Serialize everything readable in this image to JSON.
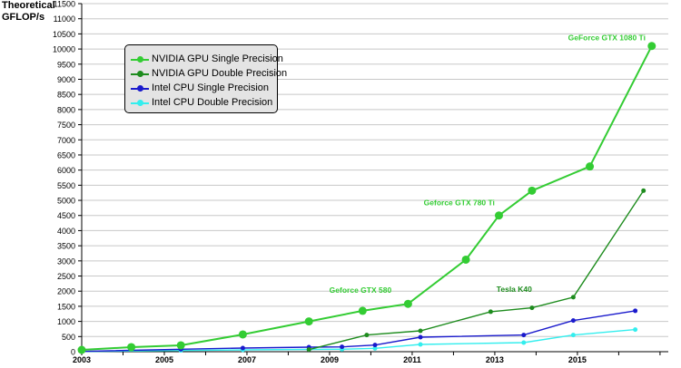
{
  "chart_data": {
    "type": "line",
    "ylabel": "Theoretical\nGFLOP/s",
    "xlim": [
      2003,
      2017.2
    ],
    "ylim": [
      0,
      11500
    ],
    "x_ticks": [
      2003,
      2005,
      2007,
      2009,
      2011,
      2013,
      2015
    ],
    "y_ticks": [
      0,
      500,
      1000,
      1500,
      2000,
      2500,
      3000,
      3500,
      4000,
      4500,
      5000,
      5500,
      6000,
      6500,
      7000,
      7500,
      8000,
      8500,
      9000,
      9500,
      10000,
      10500,
      11000,
      11500
    ],
    "grid": "horizontal",
    "legend_position": "top-left",
    "series": [
      {
        "name": "NVIDIA GPU Single Precision",
        "color": "#33cc33",
        "marker_size": 4.5,
        "points": [
          [
            2003.0,
            60
          ],
          [
            2004.2,
            150
          ],
          [
            2005.4,
            210
          ],
          [
            2006.9,
            570
          ],
          [
            2008.5,
            1000
          ],
          [
            2009.8,
            1350
          ],
          [
            2010.9,
            1580
          ],
          [
            2012.3,
            3040
          ],
          [
            2013.1,
            4500
          ],
          [
            2013.9,
            5320
          ],
          [
            2015.3,
            6120
          ],
          [
            2016.8,
            10100
          ]
        ]
      },
      {
        "name": "NVIDIA GPU Double Precision",
        "color": "#1e8c1e",
        "marker_size": 2.5,
        "points": [
          [
            2008.5,
            70
          ],
          [
            2009.9,
            550
          ],
          [
            2011.2,
            690
          ],
          [
            2012.9,
            1320
          ],
          [
            2013.9,
            1450
          ],
          [
            2014.9,
            1800
          ],
          [
            2016.6,
            5320
          ]
        ]
      },
      {
        "name": "Intel CPU Single Precision",
        "color": "#1a1acc",
        "marker_size": 2.5,
        "points": [
          [
            2003.0,
            10
          ],
          [
            2005.4,
            80
          ],
          [
            2006.9,
            120
          ],
          [
            2008.5,
            150
          ],
          [
            2009.3,
            160
          ],
          [
            2010.1,
            220
          ],
          [
            2011.2,
            480
          ],
          [
            2013.7,
            550
          ],
          [
            2014.9,
            1030
          ],
          [
            2016.4,
            1350
          ]
        ]
      },
      {
        "name": "Intel CPU Double Precision",
        "color": "#33eeee",
        "marker_size": 2.5,
        "points": [
          [
            2003.0,
            5
          ],
          [
            2005.4,
            40
          ],
          [
            2006.9,
            60
          ],
          [
            2008.5,
            75
          ],
          [
            2009.3,
            80
          ],
          [
            2010.1,
            110
          ],
          [
            2011.2,
            240
          ],
          [
            2013.7,
            300
          ],
          [
            2014.9,
            550
          ],
          [
            2016.4,
            730
          ]
        ]
      }
    ],
    "annotations": [
      {
        "text": "GeForce GTX 1080 Ti",
        "x": 2016.65,
        "y": 10100,
        "color": "#33cc33",
        "anchor": "end"
      },
      {
        "text": "Geforce GTX 780 Ti",
        "x": 2013.0,
        "y": 4660,
        "color": "#33cc33",
        "anchor": "end"
      },
      {
        "text": "Geforce GTX 580",
        "x": 2010.5,
        "y": 1770,
        "color": "#33cc33",
        "anchor": "end"
      },
      {
        "text": "Tesla K40",
        "x": 2013.9,
        "y": 1800,
        "color": "#1e8c1e",
        "anchor": "end"
      }
    ]
  }
}
